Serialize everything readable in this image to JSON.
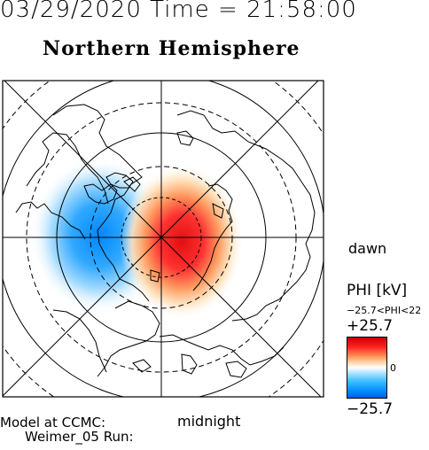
{
  "header": {
    "datetime": "03/29/2020 Time = 21:58:00",
    "title": "Northern Hemisphere"
  },
  "map": {
    "orientation_labels": {
      "dawn": "dawn",
      "midnight": "midnight"
    },
    "potential_pattern": {
      "positive_cell": {
        "side": "dawn",
        "color": "#e62020"
      },
      "negative_cell": {
        "side": "dusk",
        "color": "#1e90ff"
      }
    },
    "grid": {
      "latitude_circles": "solid and dashed",
      "meridians": 8
    }
  },
  "colorbar": {
    "title": "PHI [kV]",
    "range_text": "−25.7<PHI<22",
    "max_label": "+25.7",
    "zero_label": "0",
    "min_label": "−25.7",
    "colors": {
      "max": "#c80000",
      "zero": "#ffffff",
      "min": "#0060e0"
    }
  },
  "footer": {
    "model_line1": "Model at CCMC:",
    "model_line2": "Weimer_05 Run:"
  }
}
